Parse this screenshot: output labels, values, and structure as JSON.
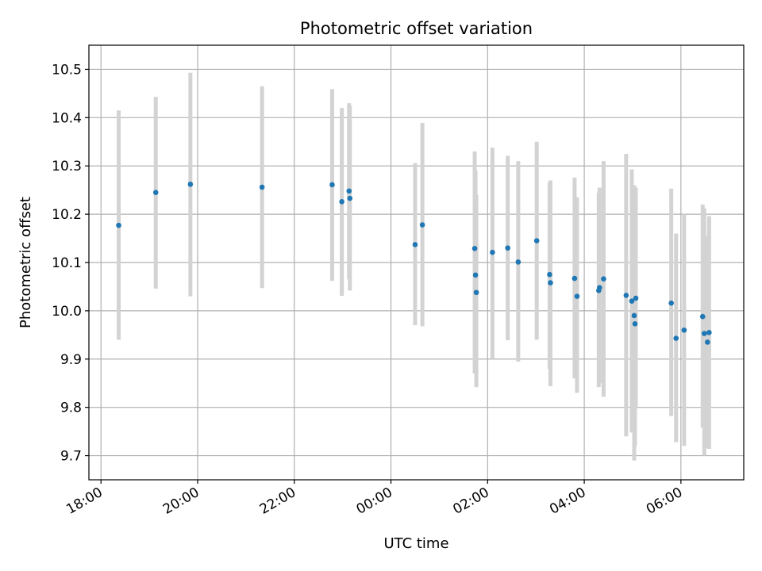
{
  "chart_data": {
    "type": "scatter",
    "title": "Photometric offset variation",
    "xlabel": "UTC time",
    "ylabel": "Photometric offset",
    "xlim": [
      "2021-01-01 17:45",
      "2021-01-02 07:18"
    ],
    "ylim": [
      9.65,
      10.55
    ],
    "grid": true,
    "x_tick_labels": [
      "18:00",
      "20:00",
      "22:00",
      "00:00",
      "02:00",
      "04:00",
      "06:00"
    ],
    "x_ticks": [
      "2021-01-01 18:00",
      "2021-01-01 20:00",
      "2021-01-01 22:00",
      "2021-01-02 00:00",
      "2021-01-02 02:00",
      "2021-01-02 04:00",
      "2021-01-02 06:00"
    ],
    "y_ticks": [
      9.7,
      9.8,
      9.9,
      10.0,
      10.1,
      10.2,
      10.3,
      10.4,
      10.5
    ],
    "y_tick_labels": [
      "9.7",
      "9.8",
      "9.9",
      "10.0",
      "10.1",
      "10.2",
      "10.3",
      "10.4",
      "10.5"
    ],
    "colors": {
      "point": "#1f77b4",
      "errorbar": "#d3d3d3",
      "grid": "#b0b0b0"
    },
    "points": [
      {
        "x": "2021-01-01 18:22",
        "y": 10.177,
        "yerr": [
          9.94,
          10.415
        ]
      },
      {
        "x": "2021-01-01 19:08",
        "y": 10.245,
        "yerr": [
          10.046,
          10.443
        ]
      },
      {
        "x": "2021-01-01 19:51",
        "y": 10.262,
        "yerr": [
          10.03,
          10.493
        ]
      },
      {
        "x": "2021-01-01 21:20",
        "y": 10.256,
        "yerr": [
          10.047,
          10.465
        ]
      },
      {
        "x": "2021-01-01 22:47",
        "y": 10.261,
        "yerr": [
          10.062,
          10.459
        ]
      },
      {
        "x": "2021-01-01 22:59",
        "y": 10.226,
        "yerr": [
          10.031,
          10.42
        ]
      },
      {
        "x": "2021-01-01 23:08",
        "y": 10.248,
        "yerr": [
          10.065,
          10.43
        ]
      },
      {
        "x": "2021-01-01 23:09",
        "y": 10.233,
        "yerr": [
          10.042,
          10.425
        ]
      },
      {
        "x": "2021-01-02 00:30",
        "y": 10.137,
        "yerr": [
          9.97,
          10.306
        ]
      },
      {
        "x": "2021-01-02 00:39",
        "y": 10.178,
        "yerr": [
          9.968,
          10.389
        ]
      },
      {
        "x": "2021-01-02 01:44",
        "y": 10.129,
        "yerr": [
          9.87,
          10.33
        ]
      },
      {
        "x": "2021-01-02 01:45",
        "y": 10.074,
        "yerr": [
          9.88,
          10.29
        ]
      },
      {
        "x": "2021-01-02 01:46",
        "y": 10.038,
        "yerr": [
          9.842,
          10.24
        ]
      },
      {
        "x": "2021-01-02 02:06",
        "y": 10.121,
        "yerr": [
          9.9,
          10.338
        ]
      },
      {
        "x": "2021-01-02 02:25",
        "y": 10.13,
        "yerr": [
          9.939,
          10.321
        ]
      },
      {
        "x": "2021-01-02 02:38",
        "y": 10.101,
        "yerr": [
          9.895,
          10.31
        ]
      },
      {
        "x": "2021-01-02 03:01",
        "y": 10.145,
        "yerr": [
          9.94,
          10.35
        ]
      },
      {
        "x": "2021-01-02 03:17",
        "y": 10.075,
        "yerr": [
          9.88,
          10.265
        ]
      },
      {
        "x": "2021-01-02 03:18",
        "y": 10.058,
        "yerr": [
          9.844,
          10.27
        ]
      },
      {
        "x": "2021-01-02 03:48",
        "y": 10.067,
        "yerr": [
          9.86,
          10.276
        ]
      },
      {
        "x": "2021-01-02 03:51",
        "y": 10.03,
        "yerr": [
          9.83,
          10.235
        ]
      },
      {
        "x": "2021-01-02 04:18",
        "y": 10.042,
        "yerr": [
          9.842,
          10.245
        ]
      },
      {
        "x": "2021-01-02 04:19",
        "y": 10.048,
        "yerr": [
          9.85,
          10.255
        ]
      },
      {
        "x": "2021-01-02 04:24",
        "y": 10.066,
        "yerr": [
          9.822,
          10.31
        ]
      },
      {
        "x": "2021-01-02 04:52",
        "y": 10.032,
        "yerr": [
          9.74,
          10.325
        ]
      },
      {
        "x": "2021-01-02 04:59",
        "y": 10.02,
        "yerr": [
          9.748,
          10.293
        ]
      },
      {
        "x": "2021-01-02 05:02",
        "y": 9.99,
        "yerr": [
          9.69,
          10.26
        ]
      },
      {
        "x": "2021-01-02 05:03",
        "y": 9.973,
        "yerr": [
          9.72,
          10.255
        ]
      },
      {
        "x": "2021-01-02 05:04",
        "y": 10.026,
        "yerr": [
          9.8,
          10.255
        ]
      },
      {
        "x": "2021-01-02 05:48",
        "y": 10.016,
        "yerr": [
          9.782,
          10.253
        ]
      },
      {
        "x": "2021-01-02 05:54",
        "y": 9.943,
        "yerr": [
          9.728,
          10.16
        ]
      },
      {
        "x": "2021-01-02 06:04",
        "y": 9.96,
        "yerr": [
          9.72,
          10.2
        ]
      },
      {
        "x": "2021-01-02 06:27",
        "y": 9.988,
        "yerr": [
          9.758,
          10.22
        ]
      },
      {
        "x": "2021-01-02 06:29",
        "y": 9.953,
        "yerr": [
          9.7,
          10.212
        ]
      },
      {
        "x": "2021-01-02 06:33",
        "y": 9.935,
        "yerr": [
          9.715,
          10.155
        ]
      },
      {
        "x": "2021-01-02 06:35",
        "y": 9.955,
        "yerr": [
          9.714,
          10.196
        ]
      }
    ]
  }
}
